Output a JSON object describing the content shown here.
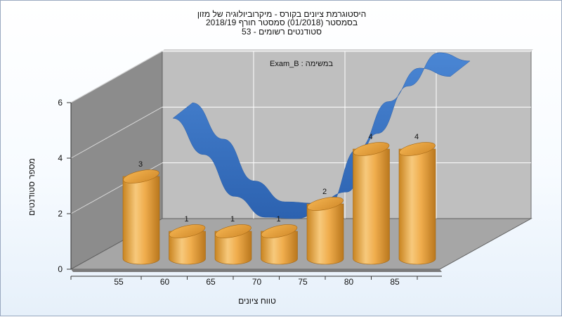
{
  "title_lines": [
    "היסטוגרמת ציונים בקורס - מיקרוביולוגיה של מזון",
    "בסמסטר  (01/2018)  סמסטר חורף 2018/19",
    "סטודנטים רשומים - 53"
  ],
  "chart_data": {
    "type": "bar",
    "subtitle": "במשימה : Exam_B",
    "xlabel": "טווח ציונים",
    "ylabel": "מספר סטודנטים",
    "x_tick_labels": [
      "55",
      "60",
      "65",
      "70",
      "75",
      "80",
      "85"
    ],
    "y_ticks": [
      0,
      2,
      4,
      6
    ],
    "ylim": [
      0,
      6
    ],
    "values": [
      3,
      1,
      1,
      1,
      2,
      4,
      4
    ],
    "data_labels": [
      "3",
      "1",
      "1",
      "1",
      "2",
      "4",
      "4"
    ],
    "trend_line": [
      3.9,
      2.6,
      1.1,
      0.35,
      0.3,
      0.7,
      2.8,
      4.5,
      5.7,
      5.4
    ],
    "grid": true,
    "colors": {
      "bar": "#f0ac4a",
      "trend": "#3a75c4",
      "back_wall": "#bfbfbf",
      "side_wall": "#8c8c8c",
      "floor": "#a6a6a6"
    }
  }
}
